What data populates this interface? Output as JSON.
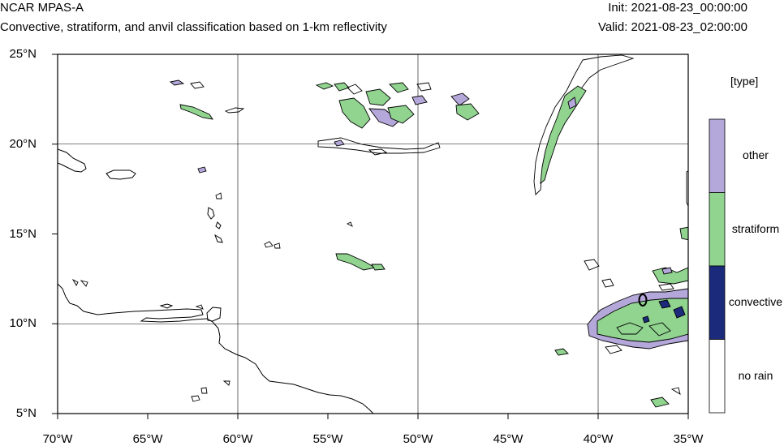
{
  "header": {
    "model": "NCAR MPAS-A",
    "description": "Convective, stratiform, and anvil classification based on 1-km reflectivity",
    "init": "Init: 2021-08-23_00:00:00",
    "valid": "Valid: 2021-08-23_02:00:00"
  },
  "map": {
    "lon_range": [
      -70,
      -35
    ],
    "lat_range": [
      5,
      25
    ],
    "x_ticks": [
      {
        "lon": -70,
        "label": "70°W"
      },
      {
        "lon": -65,
        "label": "65°W"
      },
      {
        "lon": -60,
        "label": "60°W"
      },
      {
        "lon": -55,
        "label": "55°W"
      },
      {
        "lon": -50,
        "label": "50°W"
      },
      {
        "lon": -45,
        "label": "45°W"
      },
      {
        "lon": -40,
        "label": "40°W"
      },
      {
        "lon": -35,
        "label": "35°W"
      }
    ],
    "y_ticks": [
      {
        "lat": 25,
        "label": "25°N"
      },
      {
        "lat": 20,
        "label": "20°N"
      },
      {
        "lat": 15,
        "label": "15°N"
      },
      {
        "lat": 10,
        "label": "10°N"
      },
      {
        "lat": 5,
        "label": "5°N"
      }
    ],
    "grid_lons": [
      -60,
      -50,
      -40
    ],
    "grid_lats": [
      20,
      10
    ]
  },
  "legend": {
    "title": "[type]",
    "entries": [
      {
        "label": "other",
        "color": "#b4a7d9"
      },
      {
        "label": "stratiform",
        "color": "#90d48f"
      },
      {
        "label": "convective",
        "color": "#1b2a7a"
      },
      {
        "label": "no rain",
        "color": "#ffffff"
      }
    ]
  }
}
